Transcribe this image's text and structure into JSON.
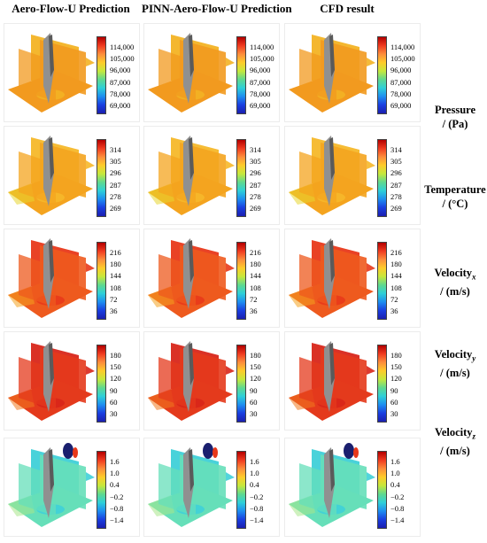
{
  "columns": [
    {
      "title": "Aero-Flow-U Prediction"
    },
    {
      "title": "PINN-Aero-Flow-U Prediction"
    },
    {
      "title": "CFD result"
    }
  ],
  "rows": [
    {
      "label": "Pressure",
      "sub": "",
      "unit": "/ (Pa)",
      "ticks": [
        "114,000",
        "105,000",
        "96,000",
        "87,000",
        "78,000",
        "69,000"
      ],
      "field": "pressure",
      "colors": {
        "main": "#f29a1f",
        "high": "#f3b324",
        "low": "#8fd14a",
        "body": "#909090"
      }
    },
    {
      "label": "Temperature",
      "sub": "",
      "unit": "/ (°C)",
      "ticks": [
        "314",
        "305",
        "296",
        "287",
        "278",
        "269"
      ],
      "field": "temperature",
      "colors": {
        "main": "#f4a41f",
        "high": "#f6b82a",
        "low": "#e8d52e",
        "body": "#909090"
      }
    },
    {
      "label": "Velocity",
      "sub": "x",
      "unit": "/ (m/s)",
      "ticks": [
        "216",
        "180",
        "144",
        "108",
        "72",
        "36"
      ],
      "field": "velocity_x",
      "colors": {
        "main": "#ee5a1e",
        "high": "#e8381a",
        "low": "#f4a21f",
        "body": "#909090"
      }
    },
    {
      "label": "Velocity",
      "sub": "y",
      "unit": "/ (m/s)",
      "ticks": [
        "180",
        "150",
        "120",
        "90",
        "60",
        "30"
      ],
      "field": "velocity_y",
      "colors": {
        "main": "#e43a1c",
        "high": "#d8261a",
        "low": "#f07a1f",
        "body": "#909090"
      }
    },
    {
      "label": "Velocity",
      "sub": "z",
      "unit": "/ (m/s)",
      "ticks": [
        "1.6",
        "1.0",
        "0.4",
        "−0.2",
        "−0.8",
        "−1.4"
      ],
      "field": "velocity_z",
      "colors": {
        "main": "#66dfb9",
        "high": "#3fd0d8",
        "low": "#a8e58a",
        "body": "#909090"
      }
    }
  ],
  "colormap": [
    "#b30000",
    "#f03b20",
    "#fd8d3c",
    "#fecc2a",
    "#c6e83c",
    "#5fd98f",
    "#2ecfd8",
    "#1e8ef0",
    "#1a3fe0",
    "#1b1fb0"
  ]
}
